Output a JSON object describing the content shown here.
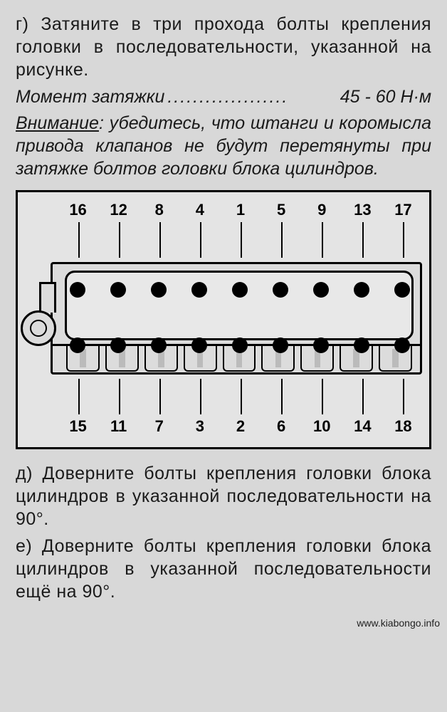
{
  "text": {
    "para_g": "г) Затяните в три прохода болты крепления головки в последова­тельности, указанной на рисунке.",
    "torque_label": "Момент затяжки",
    "torque_value": "45 - 60 Н·м",
    "warn_lead": "Внимание",
    "warn_body": ": убедитесь, что штанги и коромысла привода клапанов не бу­дут перетянуты при затяжке бол­тов головки блока цилиндров.",
    "para_d": "д) Доверните болты крепления го­ловки блока цилиндров в указанной последовательности на 90°.",
    "para_e": "е) Доверните болты крепления го­ловки блока цилиндров в указанной последовательности ещё на 90°.",
    "site": "www.kiabongo.info"
  },
  "diagram": {
    "top_numbers": [
      "16",
      "12",
      "8",
      "4",
      "1",
      "5",
      "9",
      "13",
      "17"
    ],
    "bottom_numbers": [
      "15",
      "11",
      "7",
      "3",
      "2",
      "6",
      "10",
      "14",
      "18"
    ],
    "bolt_columns": 9,
    "colors": {
      "frame_border": "#000000",
      "frame_bg": "#e4e4e4",
      "bolt": "#000000",
      "page_bg": "#d8d8d8",
      "text": "#1a1a1a"
    },
    "torque_range_Nm": [
      45,
      60
    ]
  }
}
